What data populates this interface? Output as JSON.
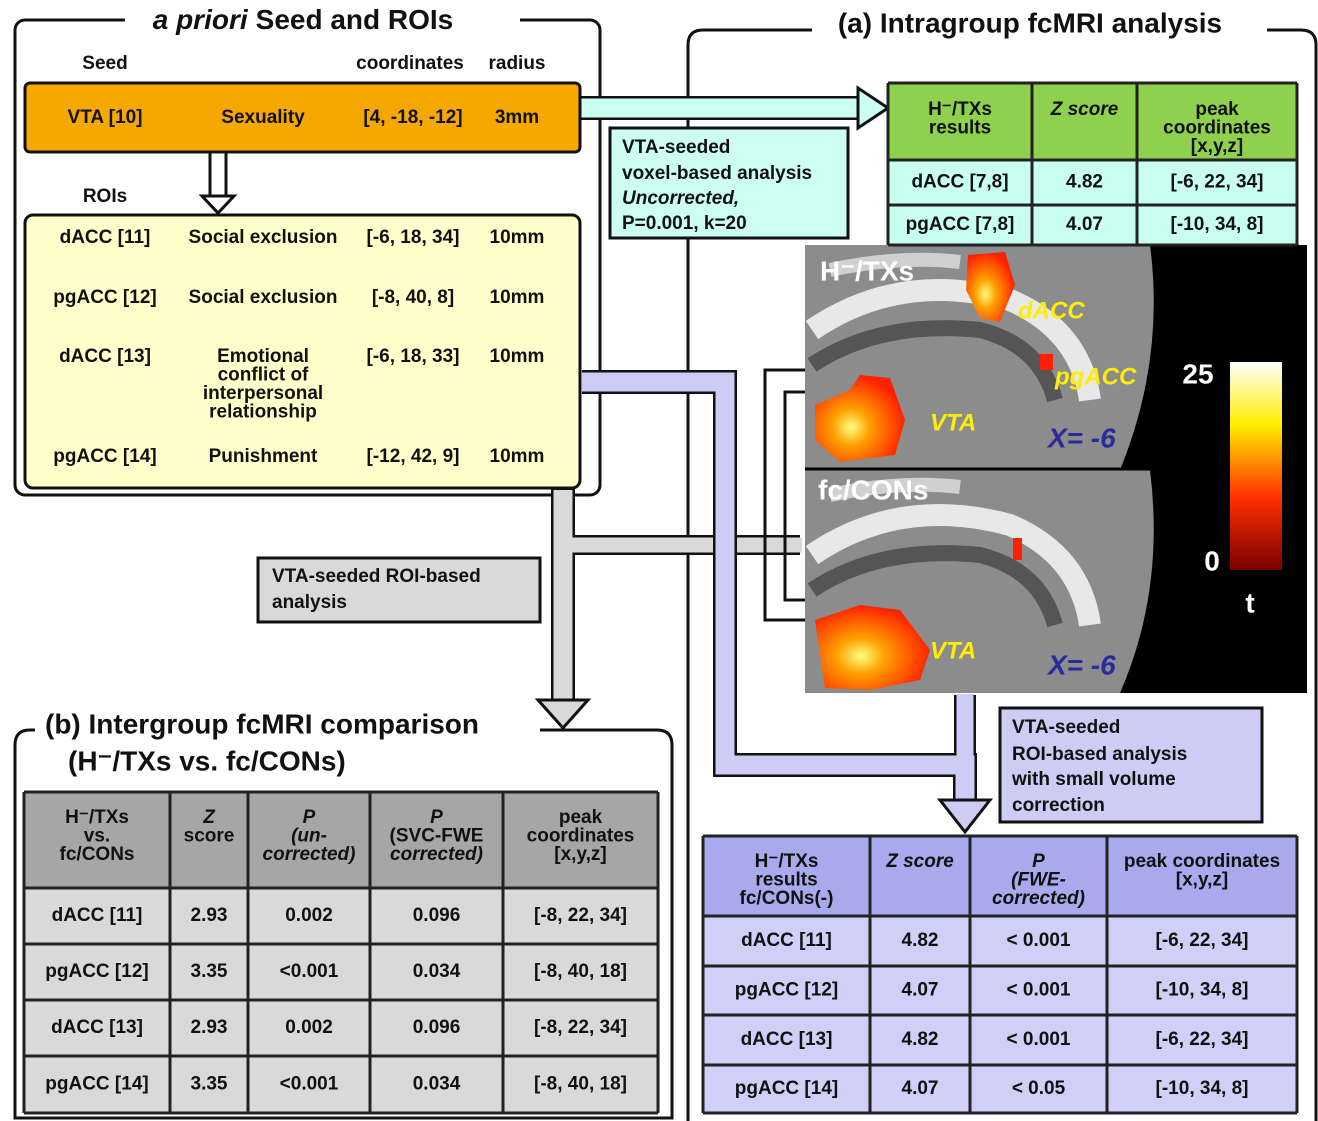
{
  "seed_panel": {
    "title_italic": "a priori",
    "title": "Seed and ROIs",
    "headers": [
      "Seed",
      "coordinates",
      "radius"
    ],
    "seed": [
      "VTA [10]",
      "Sexuality",
      "[4, -18, -12]",
      "3mm"
    ],
    "rois_label": "ROIs",
    "rois": [
      {
        "region": "dACC [11]",
        "topic": [
          "Social exclusion"
        ],
        "coordinates": "[-6, 18, 34]",
        "radius": "10mm"
      },
      {
        "region": "pgACC [12]",
        "topic": [
          "Social exclusion"
        ],
        "coordinates": "[-8, 40, 8]",
        "radius": "10mm"
      },
      {
        "region": "dACC [13]",
        "topic": [
          "Emotional",
          "conflict of",
          "interpersonal",
          "relationship"
        ],
        "coordinates": "[-6, 18, 33]",
        "radius": "10mm"
      },
      {
        "region": "pgACC [14]",
        "topic": [
          "Punishment"
        ],
        "coordinates": "[-12, 42, 9]",
        "radius": "10mm"
      }
    ]
  },
  "panel_a": {
    "title": "(a) Intragroup fcMRI analysis",
    "voxel_box": [
      "VTA-seeded",
      "voxel-based analysis",
      "Uncorrected,",
      "P=0.001, k=20"
    ],
    "table": {
      "header": [
        [
          "H⁻/TXs",
          "results"
        ],
        [
          "Z score"
        ],
        [
          "peak",
          "coordinates",
          "[x,y,z]"
        ]
      ],
      "rows": [
        [
          "dACC [7,8]",
          "4.82",
          "[-6, 22, 34]"
        ],
        [
          "pgACC [7,8]",
          "4.07",
          "[-10, 34, 8]"
        ]
      ]
    },
    "image": {
      "top_label": "H⁻/TXs",
      "bottom_label": "fc/CONs",
      "top_regions": [
        "dACC",
        "pgACC",
        "VTA"
      ],
      "top_slice": "X= -6",
      "bottom_regions": [
        "VTA"
      ],
      "bottom_slice": "X= -6",
      "colorbar": {
        "max": "25",
        "min": "0",
        "unit": "t"
      }
    },
    "roi_box": [
      "VTA-seeded",
      "ROI-based analysis",
      "with small volume",
      "correction"
    ],
    "svc_table": {
      "header": [
        [
          "H⁻/TXs",
          "results",
          "fc/CONs(-)"
        ],
        [
          "Z score"
        ],
        [
          "P",
          "(FWE-",
          "corrected)"
        ],
        [
          "peak coordinates",
          "[x,y,z]"
        ]
      ],
      "rows": [
        [
          "dACC [11]",
          "4.82",
          "< 0.001",
          "[-6, 22, 34]"
        ],
        [
          "pgACC [12]",
          "4.07",
          "< 0.001",
          "[-10, 34, 8]"
        ],
        [
          "dACC [13]",
          "4.82",
          "< 0.001",
          "[-6, 22, 34]"
        ],
        [
          "pgACC [14]",
          "4.07",
          "< 0.05",
          "[-10, 34, 8]"
        ]
      ]
    }
  },
  "roi_gray_box": [
    "VTA-seeded ROI-based",
    "analysis"
  ],
  "panel_b": {
    "title": [
      "(b) Intergroup fcMRI comparison",
      "(H⁻/TXs vs. fc/CONs)"
    ],
    "table": {
      "header": [
        [
          "H⁻/TXs",
          "vs.",
          "fc/CONs"
        ],
        [
          "Z",
          "score"
        ],
        [
          "P",
          "(un-",
          "corrected)"
        ],
        [
          "P",
          "(SVC-FWE",
          "corrected)"
        ],
        [
          "peak",
          "coordinates",
          "[x,y,z]"
        ]
      ],
      "rows": [
        [
          "dACC [11]",
          "2.93",
          "0.002",
          "0.096",
          "[-8, 22, 34]"
        ],
        [
          "pgACC [12]",
          "3.35",
          "<0.001",
          "0.034",
          "[-8, 40, 18]"
        ],
        [
          "dACC [13]",
          "2.93",
          "0.002",
          "0.096",
          "[-8, 22, 34]"
        ],
        [
          "pgACC [14]",
          "3.35",
          "<0.001",
          "0.034",
          "[-8, 40, 18]"
        ]
      ]
    }
  }
}
